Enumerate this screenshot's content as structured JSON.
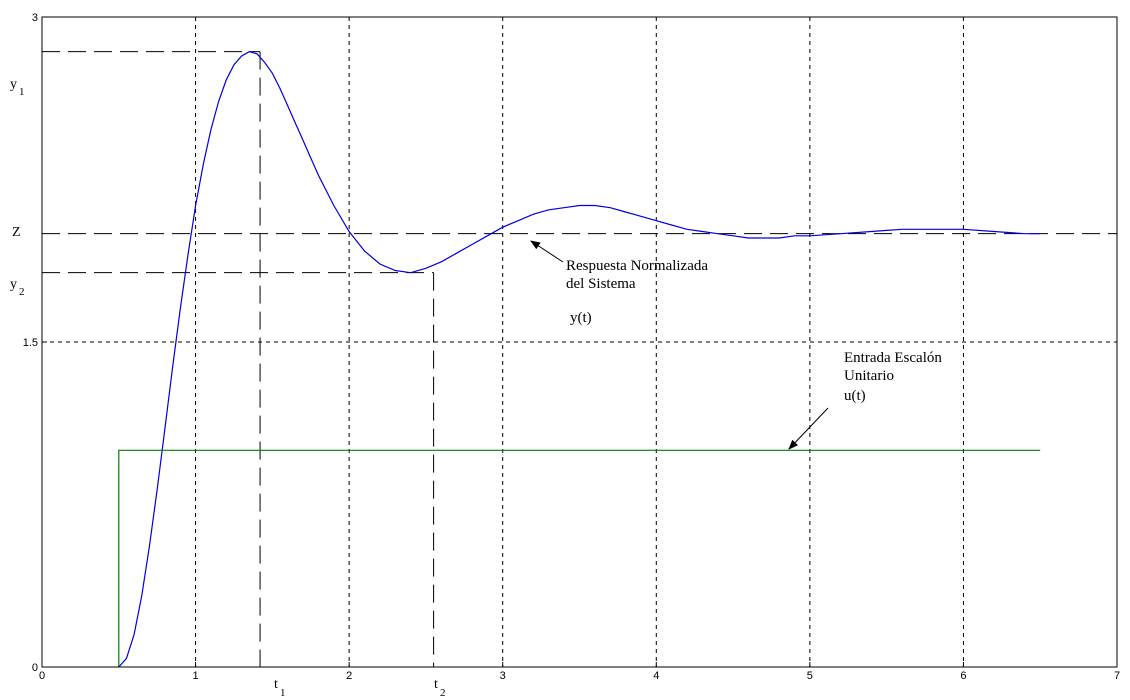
{
  "chart_data": {
    "type": "line",
    "xlim": [
      0,
      7
    ],
    "ylim": [
      0,
      3
    ],
    "x_ticks": [
      "0",
      "1",
      "2",
      "3",
      "4",
      "5",
      "6",
      "7"
    ],
    "y_ticks": [
      {
        "value": 0,
        "label": "0"
      },
      {
        "value": 1.5,
        "label": "1.5"
      },
      {
        "value": 3,
        "label": "3"
      }
    ],
    "grid": true,
    "series": [
      {
        "color": "#0000dd",
        "x": [
          0.5,
          0.55,
          0.6,
          0.65,
          0.7,
          0.75,
          0.8,
          0.85,
          0.9,
          0.95,
          1.0,
          1.05,
          1.1,
          1.15,
          1.2,
          1.25,
          1.3,
          1.35,
          1.4,
          1.45,
          1.5,
          1.55,
          1.6,
          1.65,
          1.7,
          1.8,
          1.9,
          2.0,
          2.1,
          2.2,
          2.3,
          2.4,
          2.5,
          2.6,
          2.7,
          2.8,
          2.9,
          3.0,
          3.1,
          3.2,
          3.3,
          3.4,
          3.5,
          3.6,
          3.7,
          3.8,
          3.9,
          4.0,
          4.1,
          4.2,
          4.3,
          4.4,
          4.5,
          4.6,
          4.7,
          4.8,
          4.9,
          5.0,
          5.2,
          5.4,
          5.6,
          5.8,
          6.0,
          6.2,
          6.4,
          6.5
        ],
        "y": [
          0.0,
          0.04,
          0.15,
          0.33,
          0.56,
          0.82,
          1.1,
          1.38,
          1.65,
          1.9,
          2.13,
          2.32,
          2.48,
          2.61,
          2.71,
          2.78,
          2.82,
          2.84,
          2.83,
          2.79,
          2.74,
          2.67,
          2.59,
          2.51,
          2.43,
          2.27,
          2.13,
          2.01,
          1.92,
          1.86,
          1.83,
          1.82,
          1.84,
          1.87,
          1.91,
          1.95,
          1.99,
          2.03,
          2.06,
          2.09,
          2.11,
          2.12,
          2.13,
          2.13,
          2.12,
          2.1,
          2.08,
          2.06,
          2.04,
          2.02,
          2.01,
          2.0,
          1.99,
          1.98,
          1.98,
          1.98,
          1.99,
          1.99,
          2.0,
          2.01,
          2.02,
          2.02,
          2.02,
          2.01,
          2.0,
          2.0
        ]
      },
      {
        "color": "#008000",
        "x": [
          0.5,
          0.5,
          6.5
        ],
        "y": [
          0.0,
          1.0,
          1.0
        ]
      }
    ],
    "reference_lines": {
      "y1": 2.84,
      "z": 2.0,
      "y2": 1.82,
      "t1": 1.42,
      "t2": 2.55
    },
    "annotations": {
      "y1_label": "y",
      "y1_sub": "1",
      "z_label": "Z",
      "y2_label": "y",
      "y2_sub": "2",
      "t1_label": "t",
      "t1_sub": "1",
      "t2_label": "t",
      "t2_sub": "2",
      "response_line1": "Respuesta Normalizada",
      "response_line2": "del Sistema",
      "response_var": "y(t)",
      "step_line1": "Entrada Escalón",
      "step_line2": "Unitario",
      "step_var": "u(t)"
    }
  }
}
